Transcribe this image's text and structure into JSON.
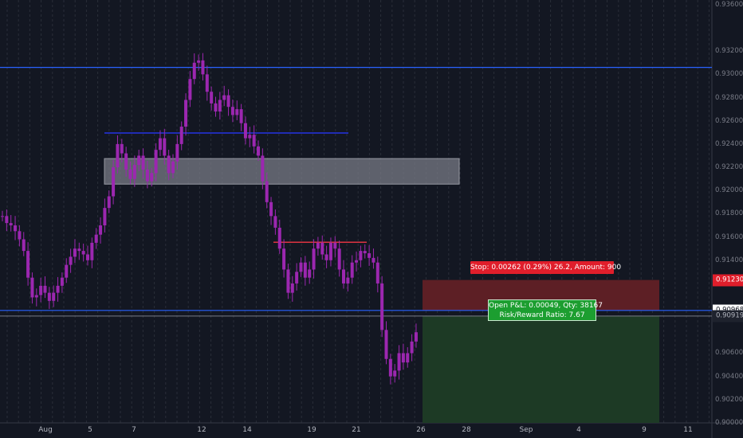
{
  "colors": {
    "background": "#131722",
    "grid": "#2a2e39",
    "candle": "#9c27b0",
    "hline": "#2962ff",
    "stop_zone": "#5d1f25",
    "target_zone": "#1d3a25",
    "stop_label_bg": "#e01e2b",
    "pnl_label_bg": "#1c9e30"
  },
  "price_axis": {
    "ticks": [
      "0.93600",
      "0.93200",
      "0.93000",
      "0.92800",
      "0.92600",
      "0.92400",
      "0.92200",
      "0.92000",
      "0.91800",
      "0.91600",
      "0.91400",
      "0.91230",
      "0.90968",
      "0.90919",
      "0.90600",
      "0.90400",
      "0.90200",
      "0.90000"
    ],
    "stop_label": "0.91230",
    "current_label": "0.90968",
    "entry_label": "0.90919"
  },
  "time_axis": {
    "ticks": [
      "Aug",
      "5",
      "7",
      "12",
      "14",
      "19",
      "21",
      "26",
      "28",
      "Sep",
      "4",
      "9",
      "11"
    ]
  },
  "position": {
    "stop_text": "Stop: 0.00262 (0.29%) 26.2, Amount: 900",
    "pnl_line1": "Open P&L: 0.00049, Qty: 38167",
    "pnl_line2": "Risk/Reward Ratio: 7.67"
  },
  "chart_data": {
    "type": "candlestick",
    "ylim": [
      0.9,
      0.9364
    ],
    "x_labels": [
      "Aug",
      "5",
      "7",
      "12",
      "14",
      "19",
      "21",
      "26",
      "28",
      "Sep",
      "4",
      "9",
      "11"
    ],
    "horizontal_lines": [
      0.9306,
      0.92495,
      0.91555,
      0.90968,
      0.90919
    ],
    "zones": [
      {
        "name": "supply zone",
        "low": 0.92055,
        "high": 0.92275
      },
      {
        "name": "stop zone",
        "low": 0.90968,
        "high": 0.9123
      },
      {
        "name": "target zone",
        "low": 0.9,
        "high": 0.90919
      }
    ],
    "ohlc_close_path": [
      0.9178,
      0.9172,
      0.917,
      0.9165,
      0.9158,
      0.9148,
      0.9125,
      0.9108,
      0.911,
      0.9118,
      0.9112,
      0.9105,
      0.9112,
      0.9118,
      0.9125,
      0.9136,
      0.9143,
      0.915,
      0.9148,
      0.9145,
      0.914,
      0.9155,
      0.9162,
      0.917,
      0.9185,
      0.9195,
      0.922,
      0.924,
      0.9232,
      0.9218,
      0.921,
      0.9222,
      0.923,
      0.9218,
      0.9208,
      0.9215,
      0.9235,
      0.9245,
      0.923,
      0.9215,
      0.9225,
      0.924,
      0.9255,
      0.9278,
      0.9296,
      0.931,
      0.9312,
      0.93,
      0.9285,
      0.9275,
      0.9268,
      0.9278,
      0.9282,
      0.9272,
      0.9265,
      0.927,
      0.9258,
      0.9245,
      0.9248,
      0.9238,
      0.923,
      0.9208,
      0.919,
      0.9178,
      0.9168,
      0.915,
      0.9132,
      0.9112,
      0.912,
      0.913,
      0.9138,
      0.9125,
      0.9132,
      0.915,
      0.9155,
      0.9145,
      0.914,
      0.9155,
      0.915,
      0.9132,
      0.912,
      0.9125,
      0.9138,
      0.914,
      0.9148,
      0.9146,
      0.9142,
      0.9138,
      0.912,
      0.908,
      0.9055,
      0.904,
      0.9045,
      0.906,
      0.9052,
      0.906,
      0.907,
      0.9078
    ]
  }
}
